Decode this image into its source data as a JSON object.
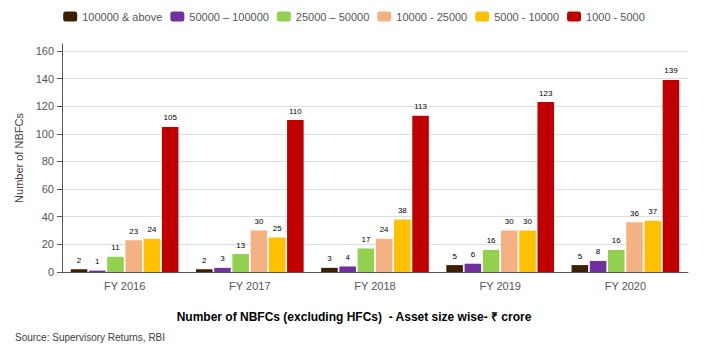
{
  "chart_data": {
    "type": "bar",
    "title": "Number of NBFCs (excluding HFCs)  - Asset size wise- ₹ crore",
    "annotations": [
      "Source: Supervisory Returns, RBI"
    ],
    "ylabel": "Number of NBFCs",
    "categories": [
      "FY 2016",
      "FY 2017",
      "FY 2018",
      "FY 2019",
      "FY 2020"
    ],
    "series": [
      {
        "name": "100000 & above",
        "color": "#3d1f00",
        "values": [
          2,
          2,
          3,
          5,
          5
        ]
      },
      {
        "name": "50000 – 100000",
        "color": "#7030a0",
        "values": [
          1,
          3,
          4,
          6,
          8
        ]
      },
      {
        "name": "25000 – 50000",
        "color": "#92d050",
        "values": [
          11,
          13,
          17,
          16,
          16
        ]
      },
      {
        "name": "10000 - 25000",
        "color": "#f4b183",
        "values": [
          23,
          30,
          24,
          30,
          36
        ]
      },
      {
        "name": "5000 - 10000",
        "color": "#ffc000",
        "values": [
          24,
          25,
          38,
          30,
          37
        ]
      },
      {
        "name": "1000 - 5000",
        "color": "#c00000",
        "values": [
          105,
          110,
          113,
          123,
          139
        ]
      }
    ],
    "ylim": [
      0,
      165
    ],
    "yticks": [
      0,
      20,
      40,
      60,
      80,
      100,
      120,
      140,
      160
    ],
    "grid": true,
    "legend": "top",
    "data_labels": true
  }
}
